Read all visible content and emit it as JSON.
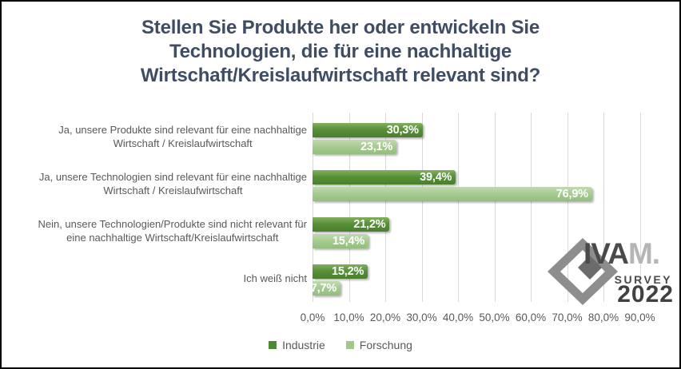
{
  "title": {
    "lines": [
      "Stellen Sie Produkte her oder entwickeln Sie",
      "Technologien, die für eine nachhaltige",
      "Wirtschaft/Kreislaufwirtschaft relevant sind?"
    ],
    "color": "#3e4d63"
  },
  "chart_data": {
    "type": "bar",
    "orientation": "horizontal",
    "categories": [
      "Ja, unsere Produkte sind relevant für eine nachhaltige\nWirtschaft / Kreislaufwirtschaft",
      "Ja, unsere Technologien sind relevant für eine nachhaltige\nWirtschaft / Kreislaufwirtschaft",
      "Nein, unsere Technologien/Produkte sind nicht relevant für\neine nachhaltige Wirtschaft/Kreislaufwirtschaft",
      "Ich weiß nicht"
    ],
    "series": [
      {
        "name": "Industrie",
        "color": "#4e8a2f",
        "values": [
          30.3,
          39.4,
          21.2,
          15.2
        ],
        "labels": [
          "30,3%",
          "39,4%",
          "21,2%",
          "15,2%"
        ]
      },
      {
        "name": "Forschung",
        "color": "#a2c98c",
        "values": [
          23.1,
          76.9,
          15.4,
          7.7
        ],
        "labels": [
          "23,1%",
          "76,9%",
          "15,4%",
          "7,7%"
        ]
      }
    ],
    "x_ticks": [
      "0,0%",
      "10,0%",
      "20,0%",
      "30,0%",
      "40,0%",
      "50,0%",
      "60,0%",
      "70,0%",
      "80,0%",
      "90,0%"
    ],
    "xlim": [
      0,
      90
    ],
    "grid": true,
    "legend_position": "bottom",
    "value_label_color": "#ffffff",
    "axis_text_color": "#595959",
    "gridline_color": "#d9d9d9"
  },
  "logo": {
    "iva": "IVA",
    "m_dot": "M.",
    "survey": "SURVEY",
    "year": "2022"
  }
}
